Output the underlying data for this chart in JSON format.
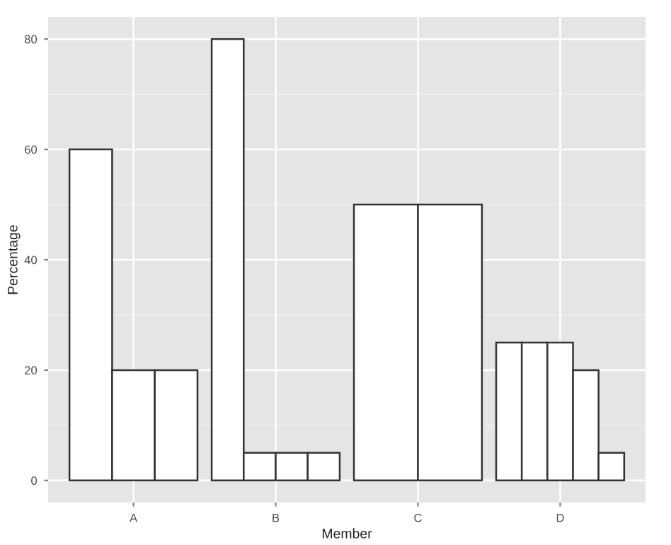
{
  "chart_data": {
    "type": "bar",
    "xlabel": "Member",
    "ylabel": "Percentage",
    "categories": [
      "A",
      "B",
      "C",
      "D"
    ],
    "series": [
      {
        "color": "#ffffff",
        "values": [
          60,
          80,
          50,
          25
        ]
      },
      {
        "color": "#ffffff",
        "values": [
          20,
          5,
          50,
          25
        ]
      },
      {
        "color": "#ffffff",
        "values": [
          20,
          5,
          null,
          25
        ]
      },
      {
        "color": "#ffffff",
        "values": [
          null,
          5,
          null,
          20
        ]
      },
      {
        "color": "#ffffff",
        "values": [
          null,
          null,
          null,
          5
        ]
      }
    ],
    "ylim": [
      -4,
      84
    ],
    "yticks": [
      0,
      20,
      40,
      60,
      80
    ],
    "grid": true
  }
}
